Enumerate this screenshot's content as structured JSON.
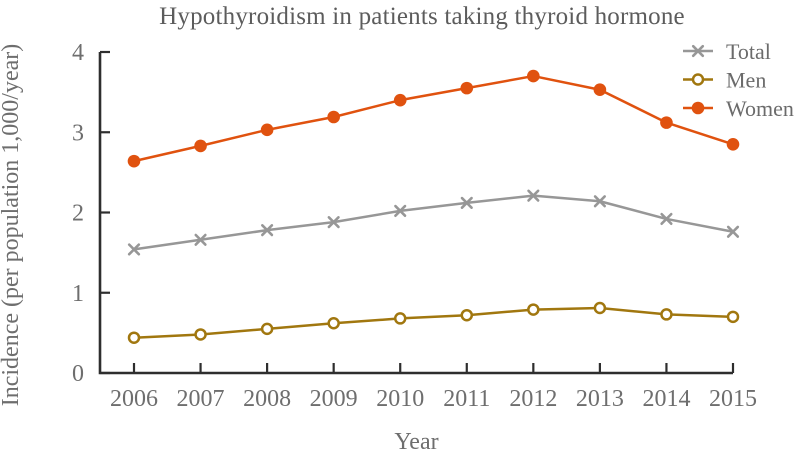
{
  "chart_data": {
    "type": "line",
    "title": "Hypothyroidism in patients taking thyroid hormone",
    "xlabel": "Year",
    "ylabel": "Incidence (per population 1,000/year)",
    "categories": [
      "2006",
      "2007",
      "2008",
      "2009",
      "2010",
      "2011",
      "2012",
      "2013",
      "2014",
      "2015"
    ],
    "y_ticks": [
      "0",
      "1",
      "2",
      "3",
      "4"
    ],
    "ylim": [
      0,
      4
    ],
    "grid": false,
    "legend_position": "top-right-inside",
    "legend_entries": [
      "Total",
      "Men",
      "Women"
    ],
    "series": [
      {
        "name": "Total",
        "marker": "x-cross",
        "color": "#979797",
        "values": [
          1.54,
          1.66,
          1.78,
          1.88,
          2.02,
          2.12,
          2.21,
          2.14,
          1.92,
          1.76
        ]
      },
      {
        "name": "Men",
        "marker": "open-circle",
        "color": "#A1770F",
        "values": [
          0.44,
          0.48,
          0.55,
          0.62,
          0.68,
          0.72,
          0.79,
          0.81,
          0.73,
          0.7
        ]
      },
      {
        "name": "Women",
        "marker": "filled-circle",
        "color": "#E0520F",
        "values": [
          2.64,
          2.83,
          3.03,
          3.19,
          3.4,
          3.55,
          3.7,
          3.53,
          3.12,
          2.85
        ]
      }
    ]
  },
  "colors": {
    "background": "#ffffff",
    "axis": "#2e2e2e",
    "tick_label": "#6e6e6e",
    "title_text": "#5c5c5c",
    "legend_text": "#6b6b6b"
  }
}
